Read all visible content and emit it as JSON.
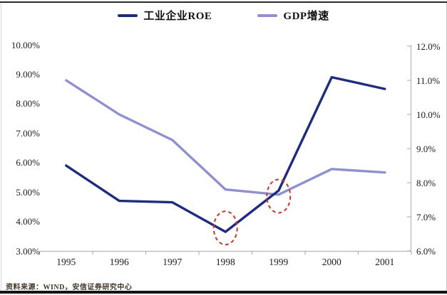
{
  "page": {
    "source_note": "资料来源：WIND，安信证券研究中心"
  },
  "chart_data": {
    "type": "line",
    "title": "",
    "legend_position": "top",
    "grid": false,
    "categories": [
      "1995",
      "1996",
      "1997",
      "1998",
      "1999",
      "2000",
      "2001"
    ],
    "series": [
      {
        "name": "工业企业ROE",
        "axis": "left",
        "color": "#1f2b7d",
        "values": [
          5.9,
          4.7,
          4.65,
          3.65,
          5.05,
          8.9,
          8.5
        ]
      },
      {
        "name": "GDP增速",
        "axis": "right",
        "color": "#8f8fd1",
        "values": [
          11.0,
          10.0,
          9.25,
          7.8,
          7.65,
          8.4,
          8.3
        ]
      }
    ],
    "left_axis": {
      "min": 3,
      "max": 10,
      "tick_step": 1,
      "tick_labels": [
        "10.00%",
        "9.00%",
        "8.00%",
        "7.00%",
        "6.00%",
        "5.00%",
        "4.00%",
        "3.00%"
      ]
    },
    "right_axis": {
      "min": 6,
      "max": 12,
      "tick_step": 1,
      "tick_labels": [
        "12.0%",
        "11.0%",
        "10.0%",
        "9.0%",
        "8.0%",
        "7.0%",
        "6.0%"
      ]
    },
    "annotations": [
      {
        "shape": "ellipse",
        "style": "dashed",
        "color": "#c4392d",
        "category_index": 3,
        "axis": "left",
        "center_value": 3.78,
        "note": "1998 ROE low point circled"
      },
      {
        "shape": "ellipse",
        "style": "dashed",
        "color": "#c4392d",
        "category_index": 4,
        "axis": "left",
        "center_value": 4.86,
        "note": "1999 ROE/GDP crossover circled"
      }
    ]
  }
}
